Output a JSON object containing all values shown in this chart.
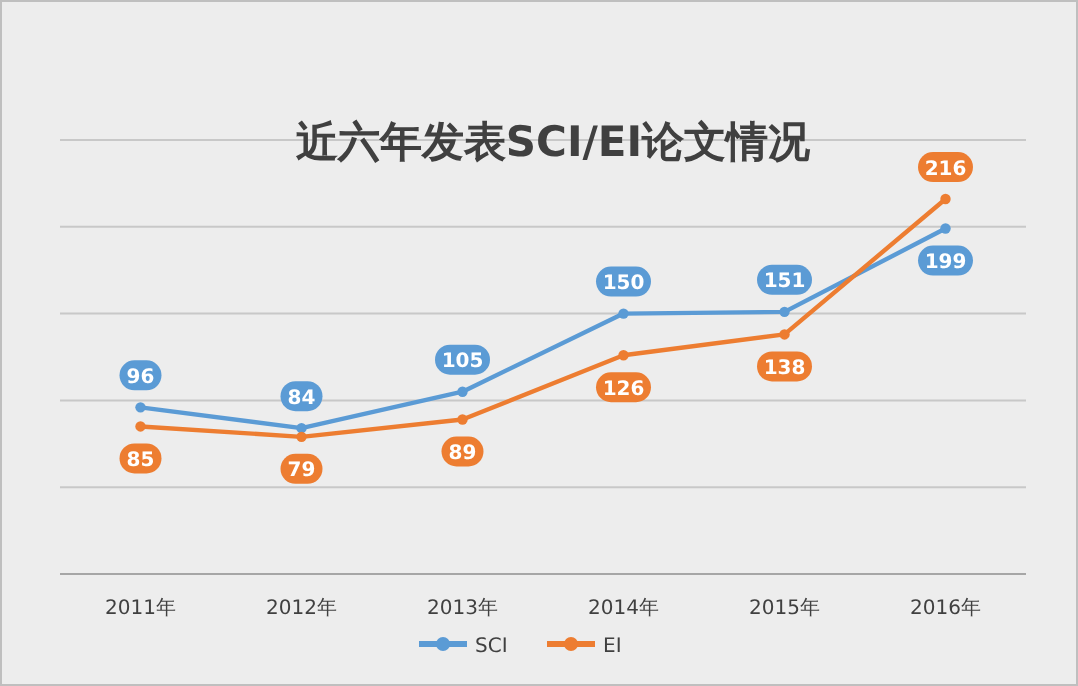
{
  "chart_data": {
    "type": "line",
    "title": "近六年发表SCI/EI论文情况",
    "categories": [
      "2011年",
      "2012年",
      "2013年",
      "2014年",
      "2015年",
      "2016年"
    ],
    "series": [
      {
        "name": "SCI",
        "color": "#5b9bd5",
        "values": [
          96,
          84,
          105,
          150,
          151,
          199
        ]
      },
      {
        "name": "EI",
        "color": "#ed7d31",
        "values": [
          85,
          79,
          89,
          126,
          138,
          216
        ]
      }
    ],
    "ylim": [
      0,
      250
    ],
    "yticks": [
      0,
      50,
      100,
      150,
      200,
      250
    ],
    "tick_labels": "x",
    "grid": "y",
    "legend": "bottom",
    "marker": "circle",
    "line_style": "solid",
    "data_labels": true
  }
}
